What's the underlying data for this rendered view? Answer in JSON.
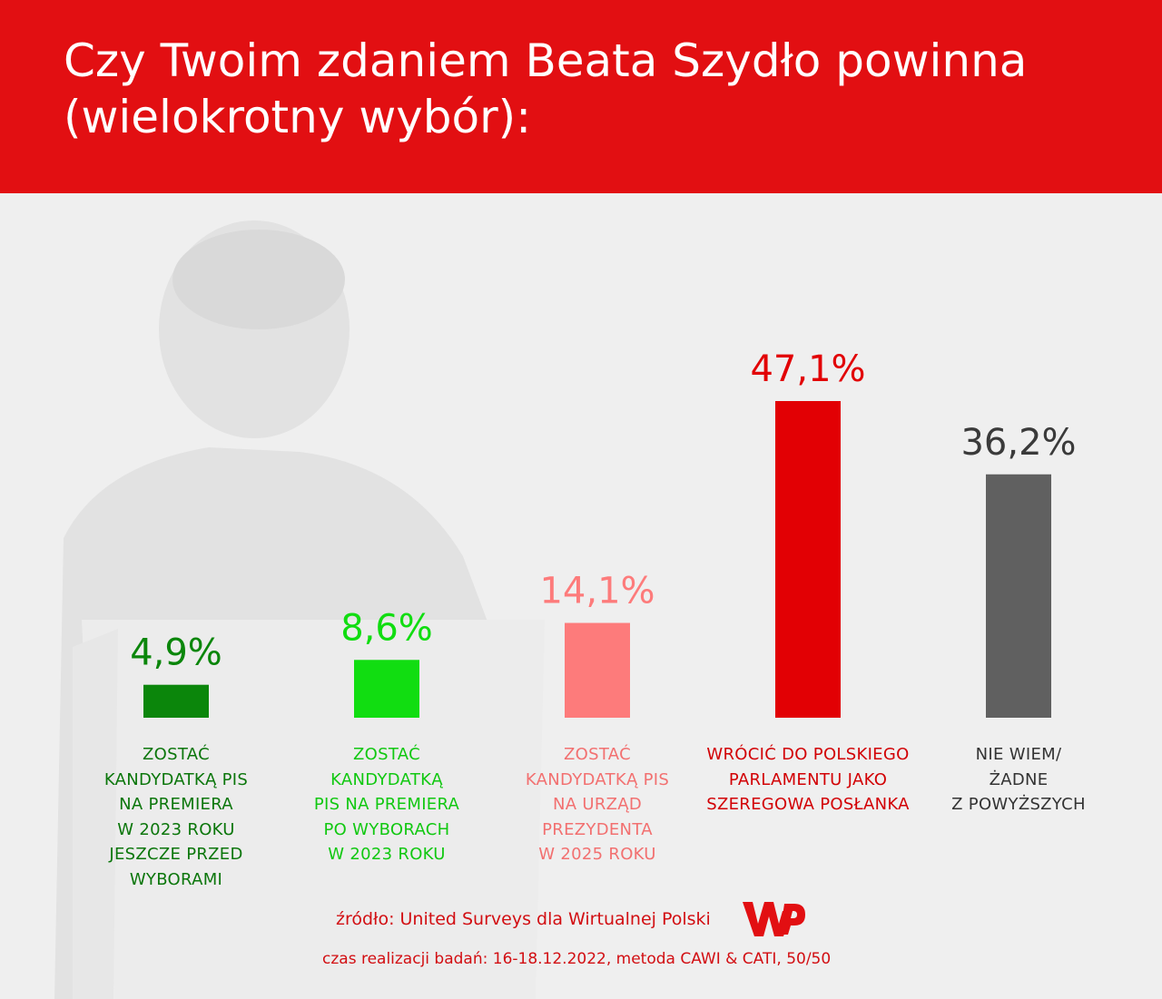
{
  "header": {
    "title": "Czy Twoim zdaniem Beata Szydło powinna (wielokrotny wybór):"
  },
  "colors": {
    "header_bg": "#e20f12",
    "background": "#efefef",
    "dark_green": "#0b860b",
    "light_green": "#11dd11",
    "pink": "#fd7b7b",
    "red": "#e20004",
    "gray": "#606060"
  },
  "chart_data": {
    "type": "bar",
    "title": "Czy Twoim zdaniem Beata Szydło powinna (wielokrotny wybór):",
    "categories": [
      "ZOSTAĆ KANDYDATKĄ PIS NA PREMIERA W 2023 ROKU JESZCZE PRZED WYBORAMI",
      "ZOSTAĆ KANDYDATKĄ PIS NA PREMIERA PO WYBORACH W 2023 ROKU",
      "ZOSTAĆ KANDYDATKĄ PIS NA URZĄD PREZYDENTA W 2025 ROKU",
      "WRÓCIĆ DO POLSKIEGO PARLAMENTU JAKO SZEREGOWA POSŁANKA",
      "NIE WIEM/ ŻADNE Z POWYŻSZYCH"
    ],
    "category_lines": [
      [
        "ZOSTAĆ",
        "KANDYDATKĄ PIS",
        "NA PREMIERA",
        "W 2023 ROKU",
        "JESZCZE PRZED",
        "WYBORAMI"
      ],
      [
        "ZOSTAĆ",
        "KANDYDATKĄ",
        "PIS NA PREMIERA",
        "PO WYBORACH",
        "W 2023 ROKU"
      ],
      [
        "ZOSTAĆ",
        "KANDYDATKĄ PIS",
        "NA URZĄD",
        "PREZYDENTA",
        "W 2025 ROKU"
      ],
      [
        "WRÓCIĆ DO POLSKIEGO",
        "PARLAMENTU JAKO",
        "SZEREGOWA POSŁANKA"
      ],
      [
        "NIE WIEM/",
        "ŻADNE",
        "Z POWYŻSZYCH"
      ]
    ],
    "values": [
      4.9,
      8.6,
      14.1,
      47.1,
      36.2
    ],
    "value_labels": [
      "4,9%",
      "8,6%",
      "14,1%",
      "47,1%",
      "36,2%"
    ],
    "bar_colors": [
      "#0b860b",
      "#11dd11",
      "#fd7b7b",
      "#e20004",
      "#606060"
    ],
    "label_colors": [
      "#0b860b",
      "#11dd11",
      "#fd7b7b",
      "#e20004",
      "#3a3a3a"
    ],
    "category_colors": [
      "#0b760b",
      "#11c811",
      "#f27070",
      "#d20004",
      "#333333"
    ],
    "ylim": [
      0,
      47.1
    ],
    "xlabel": "",
    "ylabel": "",
    "grid": false,
    "legend": "none"
  },
  "footer": {
    "source": "źródło: United Surveys dla Wirtualnej Polski",
    "method": "czas realizacji badań: 16-18.12.2022, metoda CAWI & CATI, 50/50",
    "logo_icon": "wp-logo-icon"
  }
}
